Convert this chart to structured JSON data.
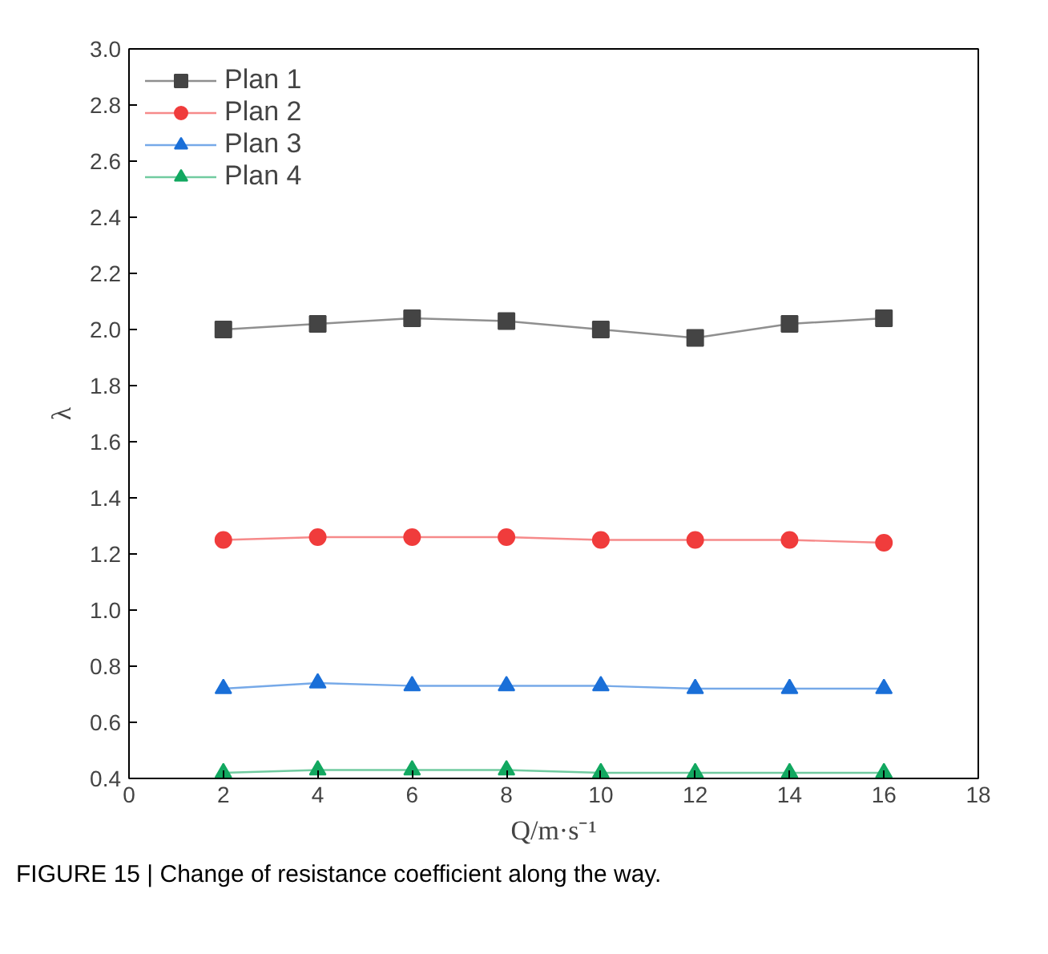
{
  "chart_data": {
    "type": "line",
    "x": [
      2,
      4,
      6,
      8,
      10,
      12,
      14,
      16
    ],
    "series": [
      {
        "name": "Plan 1",
        "color": "#444444",
        "marker": "square",
        "values": [
          2.0,
          2.02,
          2.04,
          2.03,
          2.0,
          1.97,
          2.02,
          2.04
        ]
      },
      {
        "name": "Plan 2",
        "color": "#f03c3c",
        "marker": "circle",
        "values": [
          1.25,
          1.26,
          1.26,
          1.26,
          1.25,
          1.25,
          1.25,
          1.24
        ]
      },
      {
        "name": "Plan 3",
        "color": "#1a6fd8",
        "marker": "triangle",
        "values": [
          0.72,
          0.74,
          0.73,
          0.73,
          0.73,
          0.72,
          0.72,
          0.72
        ]
      },
      {
        "name": "Plan 4",
        "color": "#12a860",
        "marker": "triangle",
        "values": [
          0.42,
          0.43,
          0.43,
          0.43,
          0.42,
          0.42,
          0.42,
          0.42
        ]
      }
    ],
    "xlabel": "Q/m·s⁻¹",
    "ylabel": "λ",
    "xlim": [
      0,
      18
    ],
    "xticks": [
      0,
      2,
      4,
      6,
      8,
      10,
      12,
      14,
      16,
      18
    ],
    "ylim": [
      0.4,
      3.0
    ],
    "yticks": [
      {
        "value": 0.4,
        "label": "0.4"
      },
      {
        "value": 0.6,
        "label": "0.6"
      },
      {
        "value": 0.8,
        "label": "0.8"
      },
      {
        "value": 1.0,
        "label": "1.0"
      },
      {
        "value": 1.2,
        "label": "1.2"
      },
      {
        "value": 1.4,
        "label": "1.4"
      },
      {
        "value": 1.6,
        "label": "1.6"
      },
      {
        "value": 1.8,
        "label": "1.8"
      },
      {
        "value": 2.0,
        "label": "2.0"
      },
      {
        "value": 2.2,
        "label": "2.2"
      },
      {
        "value": 2.4,
        "label": "2.4"
      },
      {
        "value": 2.6,
        "label": "2.6"
      },
      {
        "value": 2.8,
        "label": "2.8"
      },
      {
        "value": 3.0,
        "label": "3.0"
      }
    ],
    "grid": false,
    "legend": "top left",
    "line_style": "solid",
    "annotations": [
      "FIGURE 15 | Change of resistance coefficient along the way."
    ]
  }
}
